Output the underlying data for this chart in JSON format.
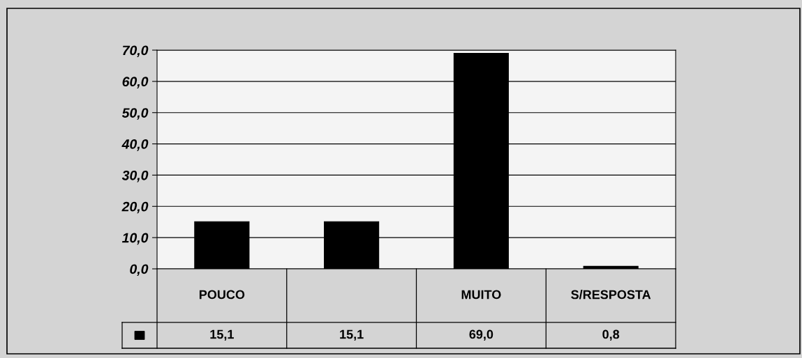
{
  "chart_data": {
    "type": "bar",
    "categories": [
      "POUCO",
      null,
      "MUITO",
      "S/RESPOSTA"
    ],
    "values": [
      15.1,
      15.1,
      69.0,
      0.8
    ],
    "value_labels": [
      "15,1",
      "15,1",
      "69,0",
      "0,8"
    ],
    "color": "#000000",
    "ylim": [
      0,
      70
    ],
    "yticks": [
      {
        "value": 0,
        "label": "0,0"
      },
      {
        "value": 10,
        "label": "10,0"
      },
      {
        "value": 20,
        "label": "20,0"
      },
      {
        "value": 30,
        "label": "30,0"
      },
      {
        "value": 40,
        "label": "40,0"
      },
      {
        "value": 50,
        "label": "50,0"
      },
      {
        "value": 60,
        "label": "60,0"
      },
      {
        "value": 70,
        "label": "70,0"
      }
    ],
    "grid": "y"
  }
}
